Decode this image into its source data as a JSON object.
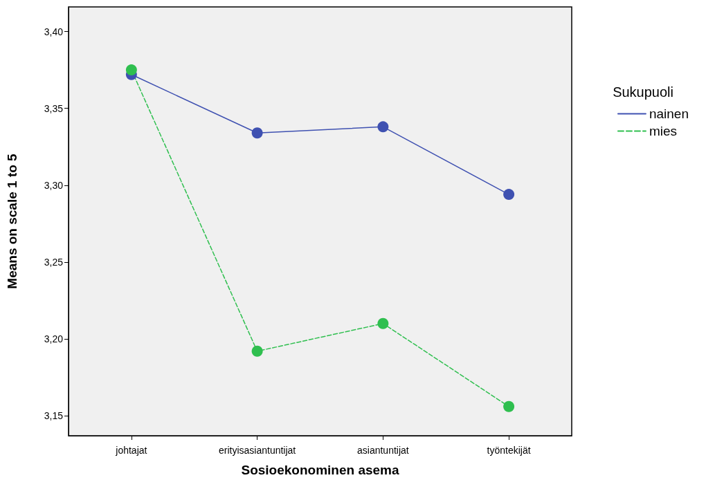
{
  "chart_data": {
    "type": "line",
    "xlabel": "Sosioekonominen asema",
    "ylabel": "Means on scale 1 to 5",
    "legend_title": "Sukupuoli",
    "categories": [
      "johtajat",
      "erityisasiantuntijat",
      "asiantuntijat",
      "työntekijät"
    ],
    "series": [
      {
        "name": "nainen",
        "color": "#3f51b1",
        "values": [
          3.372,
          3.334,
          3.338,
          3.294
        ],
        "line_style": "solid"
      },
      {
        "name": "mies",
        "color": "#2fbf4f",
        "values": [
          3.375,
          3.192,
          3.21,
          3.156
        ],
        "line_style": "dashed"
      }
    ],
    "ylim": [
      3.137,
      3.416
    ],
    "yticks": [
      {
        "value": 3.15,
        "label": "3,15"
      },
      {
        "value": 3.2,
        "label": "3,20"
      },
      {
        "value": 3.25,
        "label": "3,25"
      },
      {
        "value": 3.3,
        "label": "3,30"
      },
      {
        "value": 3.35,
        "label": "3,35"
      },
      {
        "value": 3.4,
        "label": "3,40"
      }
    ],
    "grid": false,
    "legend": "right",
    "marker": "circle"
  }
}
